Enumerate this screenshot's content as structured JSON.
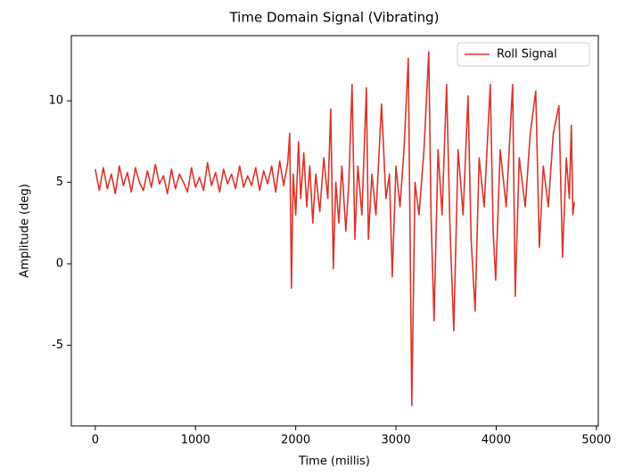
{
  "chart_data": {
    "type": "line",
    "title": "Time Domain Signal (Vibrating)",
    "x_label": "Time (millis)",
    "y_label": "Amplitude (deg)",
    "x": [
      0,
      40,
      80,
      120,
      160,
      200,
      240,
      280,
      320,
      360,
      400,
      440,
      480,
      520,
      560,
      600,
      640,
      680,
      720,
      760,
      800,
      840,
      880,
      920,
      960,
      1000,
      1040,
      1080,
      1120,
      1160,
      1200,
      1240,
      1280,
      1320,
      1360,
      1400,
      1440,
      1480,
      1520,
      1560,
      1600,
      1640,
      1680,
      1720,
      1760,
      1800,
      1840,
      1880,
      1920,
      1940,
      1957,
      1975,
      2000,
      2028,
      2050,
      2080,
      2110,
      2140,
      2170,
      2200,
      2240,
      2280,
      2320,
      2349,
      2375,
      2400,
      2430,
      2460,
      2500,
      2530,
      2562,
      2590,
      2620,
      2660,
      2705,
      2725,
      2760,
      2800,
      2856,
      2900,
      2935,
      2963,
      3000,
      3040,
      3080,
      3123,
      3158,
      3190,
      3230,
      3280,
      3327,
      3350,
      3380,
      3420,
      3460,
      3505,
      3540,
      3577,
      3620,
      3670,
      3719,
      3750,
      3790,
      3830,
      3880,
      3941,
      3970,
      3995,
      4040,
      4100,
      4164,
      4190,
      4230,
      4290,
      4340,
      4395,
      4431,
      4470,
      4520,
      4570,
      4626,
      4662,
      4700,
      4730,
      4750,
      4765,
      4780
    ],
    "series": [
      {
        "name": "Roll Signal",
        "color": "#d9352a",
        "values": [
          5.8,
          4.5,
          5.9,
          4.6,
          5.5,
          4.3,
          6.0,
          4.8,
          5.6,
          4.4,
          5.9,
          5.0,
          4.5,
          5.7,
          4.7,
          6.1,
          4.9,
          5.4,
          4.3,
          5.8,
          4.6,
          5.5,
          5.0,
          4.4,
          5.9,
          4.7,
          5.3,
          4.5,
          6.2,
          4.8,
          5.6,
          4.4,
          5.8,
          4.9,
          5.5,
          4.6,
          6.0,
          4.7,
          5.4,
          4.8,
          5.9,
          4.5,
          5.7,
          4.9,
          6.0,
          4.4,
          6.3,
          4.8,
          6.2,
          8.0,
          -1.5,
          5.5,
          3.0,
          7.5,
          4.0,
          6.8,
          3.5,
          6.0,
          2.5,
          5.5,
          3.2,
          6.5,
          4.0,
          9.5,
          -0.3,
          5.0,
          2.5,
          6.0,
          2.0,
          5.0,
          11.0,
          1.5,
          6.0,
          3.0,
          10.8,
          1.5,
          5.5,
          3.0,
          9.8,
          4.0,
          5.5,
          -0.8,
          6.0,
          3.5,
          7.0,
          12.6,
          -8.7,
          5.0,
          3.0,
          7.0,
          13.0,
          3.0,
          -3.5,
          7.0,
          3.0,
          11.0,
          2.0,
          -4.1,
          7.0,
          3.0,
          10.3,
          1.5,
          -2.9,
          6.5,
          3.5,
          11.0,
          2.0,
          -1.0,
          7.0,
          3.5,
          11.0,
          -2.0,
          6.5,
          3.5,
          8.0,
          10.6,
          1.0,
          6.0,
          3.5,
          8.0,
          9.7,
          0.4,
          6.5,
          4.0,
          8.5,
          3.0,
          3.8
        ]
      }
    ],
    "xlim": [
      -239,
      5019
    ],
    "ylim": [
      -9.95,
      14.0
    ],
    "xticks": [
      0,
      1000,
      2000,
      3000,
      4000,
      5000
    ],
    "yticks": [
      -5,
      0,
      5,
      10
    ],
    "legend": "upper right"
  }
}
